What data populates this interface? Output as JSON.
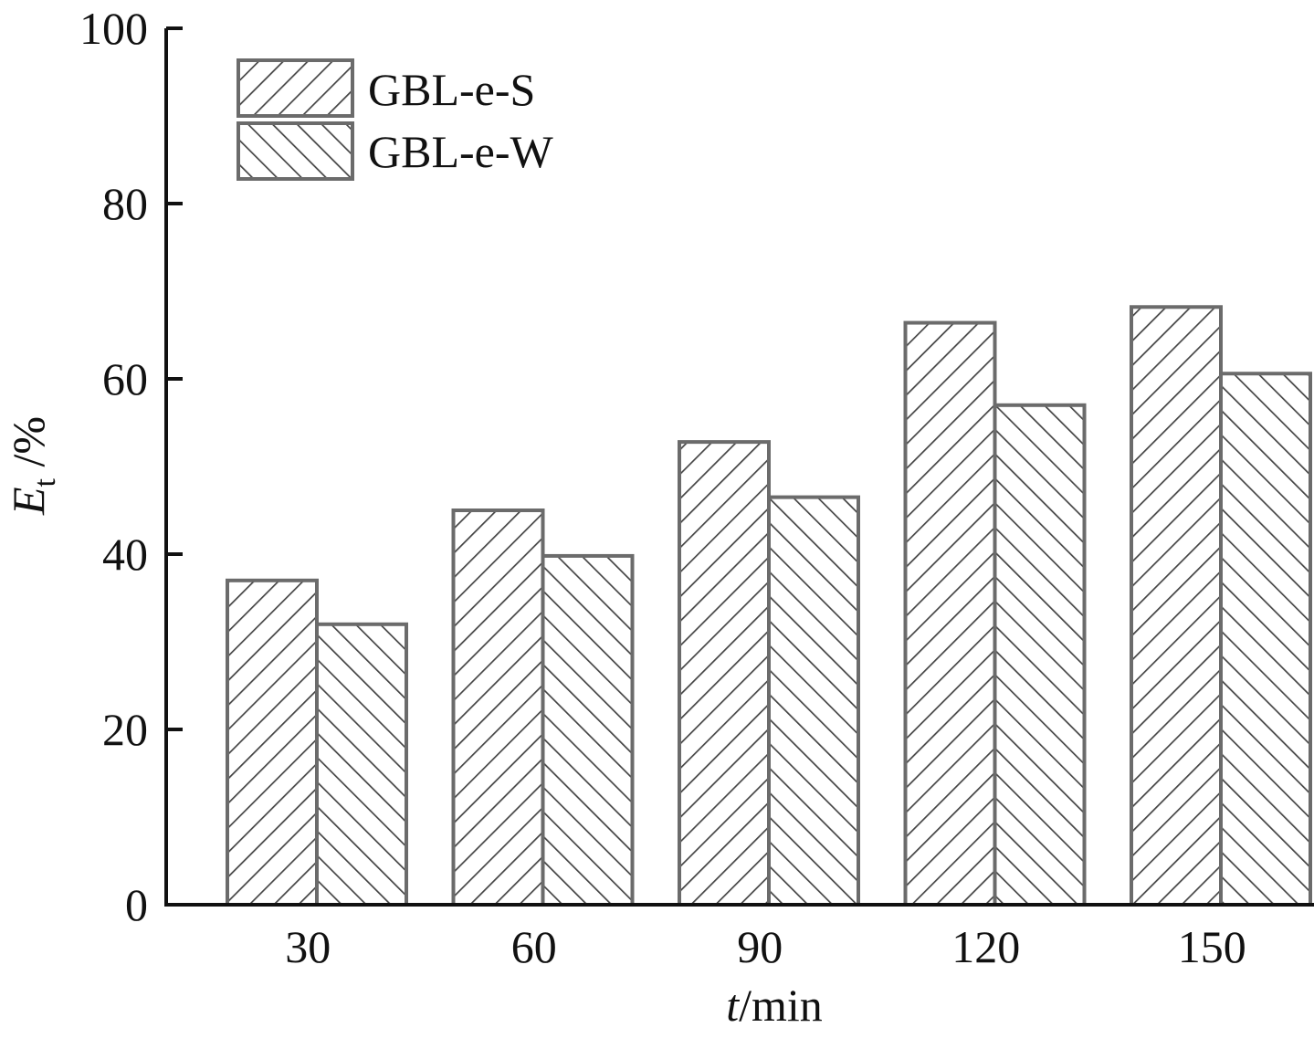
{
  "chart_data": {
    "type": "bar",
    "categories": [
      "30",
      "60",
      "90",
      "120",
      "150"
    ],
    "series": [
      {
        "name": "GBL-e-S",
        "values": [
          37.0,
          45.0,
          52.8,
          66.4,
          68.2
        ],
        "pattern": "forward-hatch"
      },
      {
        "name": "GBL-e-W",
        "values": [
          32.0,
          39.8,
          46.5,
          57.0,
          60.6
        ],
        "pattern": "back-hatch"
      }
    ],
    "xlabel_italic": "t",
    "xlabel_rest": "/min",
    "ylabel_symbol": "E",
    "ylabel_subscript": "t",
    "ylabel_rest": " /%",
    "ylim": [
      0,
      100
    ],
    "yticks": [
      "0",
      "20",
      "40",
      "60",
      "80",
      "100"
    ],
    "legend_position": "top-left",
    "grid": false,
    "colors": {
      "bar_edge": "#6b6b6b",
      "hatch": "#444444",
      "axis": "#111111"
    }
  }
}
